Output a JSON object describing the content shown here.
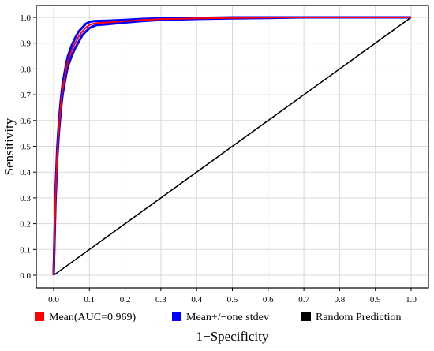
{
  "chart_data": {
    "type": "line",
    "title": "",
    "xlabel": "1−Specificity",
    "ylabel": "Sensitivity",
    "xlim": [
      0,
      1
    ],
    "ylim": [
      0,
      1
    ],
    "x_ticks": [
      "0.0",
      "0.1",
      "0.2",
      "0.3",
      "0.4",
      "0.5",
      "0.6",
      "0.7",
      "0.8",
      "0.9",
      "1.0"
    ],
    "y_ticks": [
      "0.0",
      "0.1",
      "0.2",
      "0.3",
      "0.4",
      "0.5",
      "0.6",
      "0.7",
      "0.8",
      "0.9",
      "1.0"
    ],
    "grid": true,
    "legend_position": "bottom",
    "series": [
      {
        "name": "Mean(AUC=0.969)",
        "color": "#ff0000",
        "x": [
          0.0,
          0.005,
          0.01,
          0.015,
          0.02,
          0.025,
          0.03,
          0.035,
          0.04,
          0.05,
          0.06,
          0.07,
          0.08,
          0.09,
          0.1,
          0.11,
          0.12,
          0.15,
          0.2,
          0.25,
          0.3,
          0.4,
          0.5,
          0.6,
          0.7,
          0.8,
          0.9,
          1.0
        ],
        "y": [
          0.0,
          0.3,
          0.47,
          0.58,
          0.66,
          0.72,
          0.76,
          0.8,
          0.83,
          0.87,
          0.9,
          0.925,
          0.945,
          0.96,
          0.97,
          0.975,
          0.978,
          0.98,
          0.985,
          0.99,
          0.993,
          0.996,
          0.998,
          0.999,
          1.0,
          1.0,
          1.0,
          1.0
        ]
      },
      {
        "name": "Mean+/−one stdev",
        "color": "#0000ff",
        "x": [
          0.0,
          0.005,
          0.01,
          0.015,
          0.02,
          0.025,
          0.03,
          0.035,
          0.04,
          0.05,
          0.06,
          0.07,
          0.08,
          0.09,
          0.1,
          0.11,
          0.12,
          0.15,
          0.2,
          0.25,
          0.3,
          0.4,
          0.5,
          0.6,
          0.7,
          0.8,
          0.9,
          1.0
        ],
        "y_upper": [
          0.0,
          0.32,
          0.49,
          0.6,
          0.68,
          0.74,
          0.78,
          0.82,
          0.85,
          0.89,
          0.92,
          0.945,
          0.96,
          0.975,
          0.982,
          0.985,
          0.986,
          0.987,
          0.99,
          0.994,
          0.996,
          0.998,
          1.0,
          1.0,
          1.0,
          1.0,
          1.0,
          1.0
        ],
        "y_lower": [
          0.0,
          0.28,
          0.45,
          0.56,
          0.64,
          0.7,
          0.74,
          0.78,
          0.81,
          0.85,
          0.88,
          0.905,
          0.93,
          0.945,
          0.958,
          0.965,
          0.97,
          0.973,
          0.98,
          0.986,
          0.99,
          0.994,
          0.996,
          0.998,
          1.0,
          1.0,
          1.0,
          1.0
        ]
      },
      {
        "name": "Random Prediction",
        "color": "#000000",
        "x": [
          0.0,
          1.0
        ],
        "y": [
          0.0,
          1.0
        ]
      }
    ]
  }
}
